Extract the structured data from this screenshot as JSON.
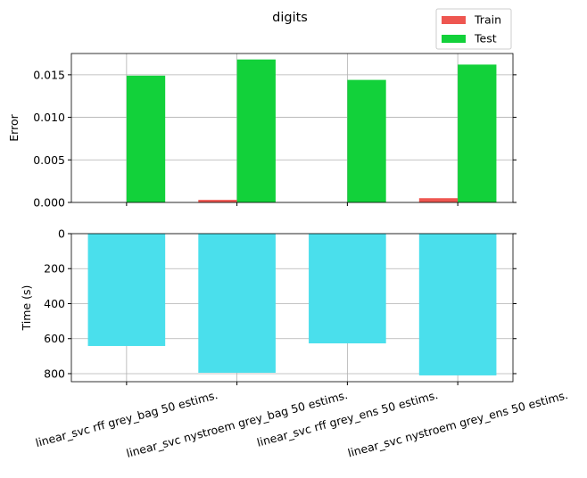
{
  "chart_data": [
    {
      "type": "bar",
      "title": "digits",
      "ylabel": "Error",
      "categories": [
        null,
        null,
        null,
        null
      ],
      "series": [
        {
          "name": "Train",
          "color": "#ee5650",
          "values": [
            0,
            0.0003,
            0,
            0.0005
          ]
        },
        {
          "name": "Test",
          "color": "#12d13a",
          "values": [
            0.0149,
            0.0168,
            0.0144,
            0.0162
          ]
        }
      ],
      "ylim": [
        0,
        0.0175
      ],
      "yticks": [
        {
          "value": 0,
          "label": "0.000"
        },
        {
          "value": 0.005,
          "label": "0.005"
        },
        {
          "value": 0.01,
          "label": "0.010"
        },
        {
          "value": 0.015,
          "label": "0.015"
        }
      ],
      "grid": true,
      "legend": "upper right"
    },
    {
      "type": "bar",
      "ylabel": "Time (s)",
      "categories": [
        "linear_svc rff grey_bag 50 estims.",
        "linear_svc nystroem grey_bag 50 estims.",
        "linear_svc rff grey_ens 50 estims.",
        "linear_svc nystroem grey_ens 50 estims."
      ],
      "values": [
        642,
        795,
        627,
        810
      ],
      "color": "#4adfec",
      "ylim": [
        0,
        846
      ],
      "y_inverted": true,
      "yticks": [
        0,
        200,
        400,
        600,
        800
      ],
      "grid": true
    }
  ]
}
